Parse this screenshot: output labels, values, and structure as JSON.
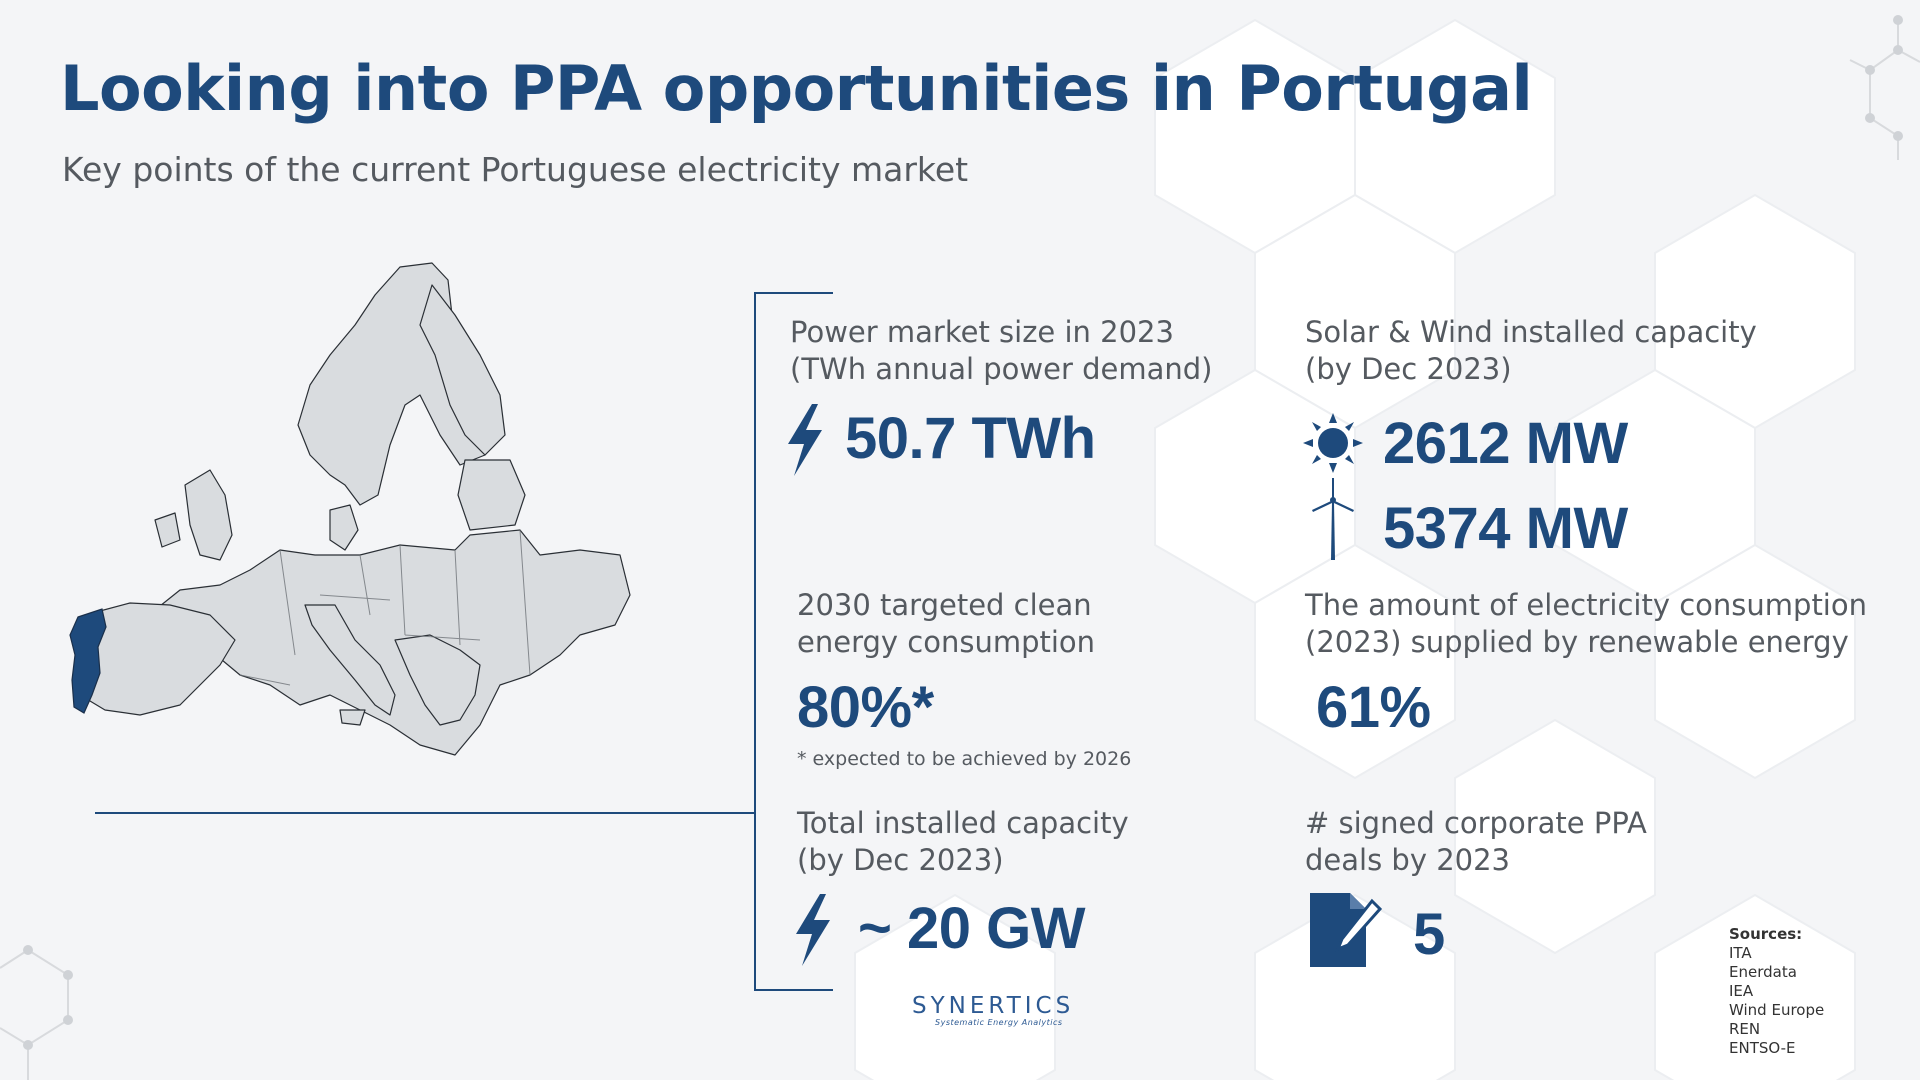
{
  "header": {
    "title": "Looking into PPA opportunities in Portugal",
    "subtitle": "Key points of the current Portuguese electricity market"
  },
  "stats": {
    "power_market": {
      "label": "Power market size in 2023\n(TWh annual power demand)",
      "value": "50.7 TWh",
      "icon": "lightning-bolt-icon"
    },
    "solar_wind": {
      "label": "Solar & Wind installed capacity\n(by Dec 2023)",
      "solar_value": "2612 MW",
      "wind_value": "5374 MW",
      "solar_icon": "sun-icon",
      "wind_icon": "wind-turbine-icon"
    },
    "clean_target": {
      "label": "2030 targeted clean\nenergy consumption",
      "value": "80%*",
      "note": "* expected to be achieved by 2026"
    },
    "renewable_share": {
      "label": "The amount of electricity consumption\n(2023) supplied by renewable energy",
      "value": "61%"
    },
    "installed_capacity": {
      "label": "Total installed capacity\n(by Dec 2023)",
      "value": "~ 20 GW",
      "icon": "lightning-bolt-icon"
    },
    "ppa_deals": {
      "label": "# signed corporate PPA\ndeals by 2023",
      "value": "5",
      "icon": "document-pen-icon"
    }
  },
  "brand": {
    "name": "SYNERTICS",
    "tagline": "Systematic Energy Analytics"
  },
  "sources": {
    "title": "Sources:",
    "items": [
      "ITA",
      "Enerdata",
      "IEA",
      "Wind Europe",
      "REN",
      "ENTSO-E"
    ]
  },
  "colors": {
    "accent": "#1e4a7c",
    "map_fill": "#d9dcdf",
    "highlight": "#1e4a7c",
    "text": "#555a60"
  }
}
